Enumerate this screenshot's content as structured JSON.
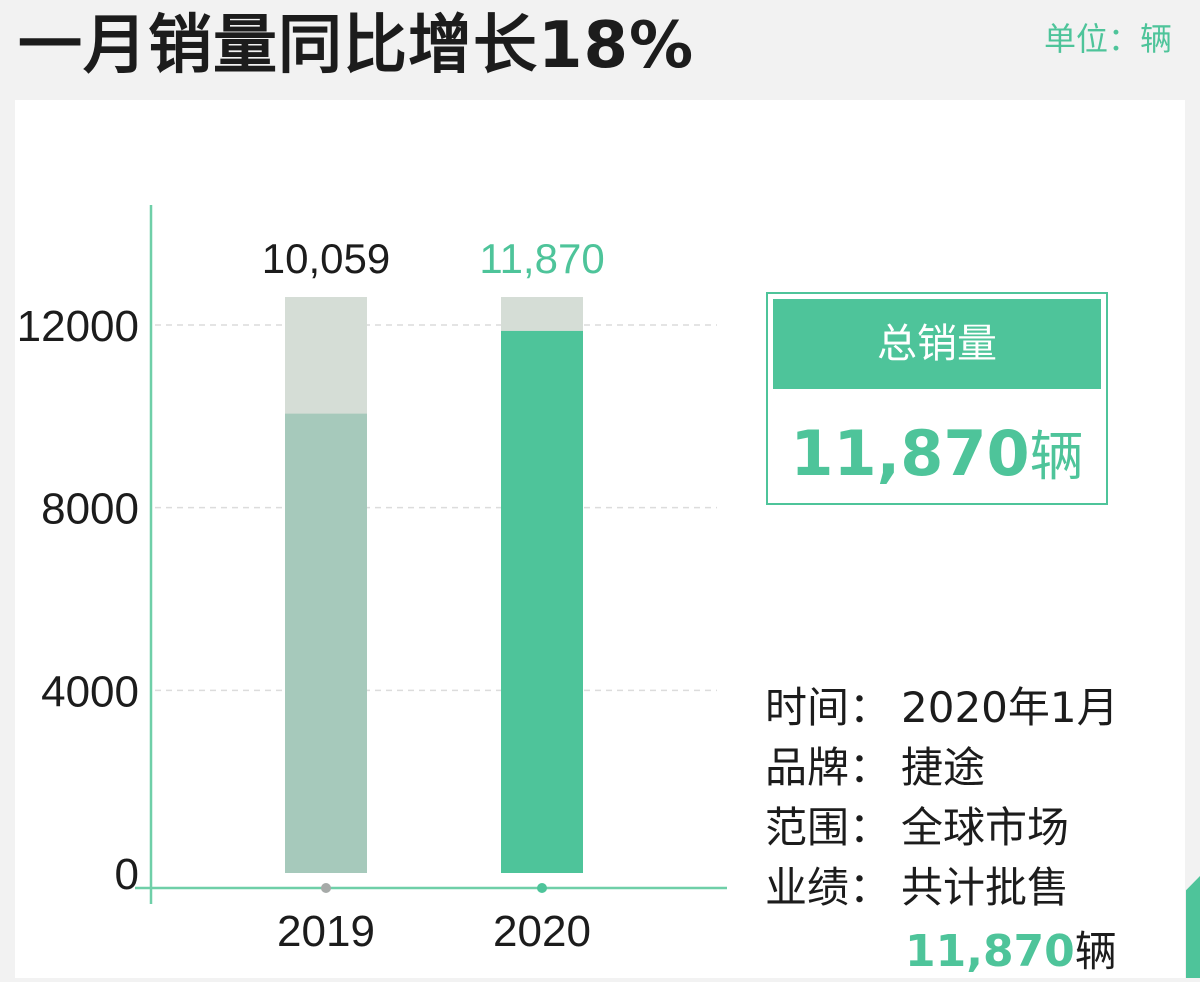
{
  "header": {
    "title": "一月销量同比增长18%",
    "unit": "单位：辆"
  },
  "total": {
    "label": "总销量",
    "value": "11,870",
    "unit": "辆"
  },
  "info": {
    "rows": [
      {
        "label": "时间：",
        "value": "2020年1月"
      },
      {
        "label": "品牌：",
        "value": "捷途"
      },
      {
        "label": "范围：",
        "value": "全球市场"
      },
      {
        "label": "业绩：",
        "value": "共计批售"
      }
    ],
    "extra_value": "11,870",
    "extra_unit": "辆"
  },
  "colors": {
    "accent": "#4ec49a",
    "muted_bar": "#a6c9bb",
    "bar_background": "#d5ddd6",
    "axis": "#6fcfa8",
    "dot_2019": "#a6aaa8"
  },
  "chart_data": {
    "type": "bar",
    "categories": [
      "2019",
      "2020"
    ],
    "values": [
      10059,
      11870
    ],
    "data_labels": [
      "10,059",
      "11,870"
    ],
    "yticks": [
      0,
      4000,
      8000,
      12000
    ],
    "ylim": [
      0,
      13000
    ],
    "grid": true,
    "title": "",
    "xlabel": "",
    "ylabel": ""
  }
}
